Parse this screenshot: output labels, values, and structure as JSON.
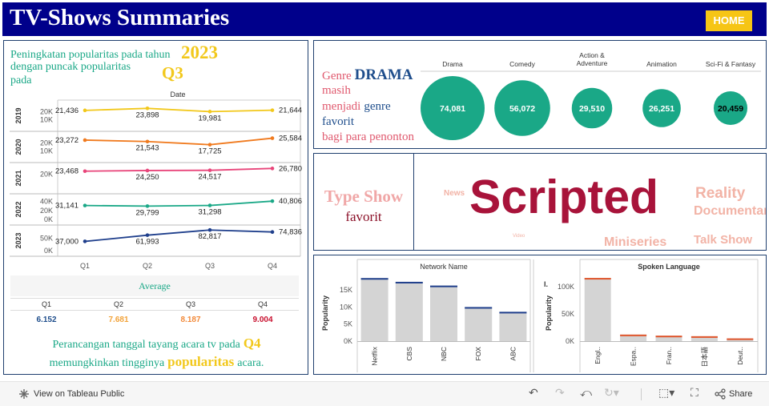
{
  "header": {
    "title": "TV-Shows Summaries",
    "home_label": "HOME"
  },
  "colors": {
    "header_bg": "#00008b",
    "home_bg": "#f6c515",
    "green": "#1aa887",
    "yellow": "#f2c81c",
    "maroon": "#a8133a",
    "pink": "#f0a7a7",
    "navy": "#1f4e8c",
    "bar": "#d4d4d4"
  },
  "trend_panel": {
    "note_line1": "Peningkatan popularitas pada tahun",
    "note_line2": "dengan puncak popularitas",
    "note_line3": "pada",
    "highlight_year": "2023",
    "highlight_quarter": "Q3",
    "footer_line1": "Perancangan tanggal tayang acara tv pada",
    "footer_q": "Q4",
    "footer_line2": "memungkinkan tingginya",
    "footer_highlight": "popularitas",
    "footer_end": "acara."
  },
  "average_table": {
    "title": "Average",
    "headers": [
      "Q1",
      "Q2",
      "Q3",
      "Q4"
    ],
    "values": [
      "6.152",
      "7.681",
      "8.187",
      "9.004"
    ],
    "value_colors": [
      "#1f4e8c",
      "#f2a33a",
      "#f28a3a",
      "#c8102e"
    ]
  },
  "genre_panel": {
    "t1": "Genre",
    "t2": "DRAMA",
    "t3": "masih",
    "t4": "menjadi",
    "t5": "genre",
    "t6": "favorit",
    "t7": "bagi para penonton"
  },
  "type_panel": {
    "title1": "Type Show",
    "title2": "favorit"
  },
  "word_cloud": [
    {
      "word": "Scripted",
      "color": "#a8133a"
    },
    {
      "word": "Reality",
      "color": "#f2b3a6"
    },
    {
      "word": "Documentary",
      "color": "#f2b3a6"
    },
    {
      "word": "Talk Show",
      "color": "#f2b3a6"
    },
    {
      "word": "Miniseries",
      "color": "#f2b3a6"
    },
    {
      "word": "News",
      "color": "#f2b3a6"
    },
    {
      "word": "Video",
      "color": "#f2b3a6"
    }
  ],
  "chart_data": [
    {
      "type": "line",
      "title": "Date",
      "x": [
        "Q1",
        "Q2",
        "Q3",
        "Q4"
      ],
      "series": [
        {
          "name": "2019",
          "values": [
            21436,
            23898,
            19981,
            21644
          ],
          "labels": [
            "21,436",
            "23,898",
            "19,981",
            "21,644"
          ],
          "color": "#f2c81c",
          "yticks": [
            "20K",
            "10K"
          ],
          "ytick_values": [
            20000,
            10000
          ],
          "ylim": [
            0,
            30000
          ]
        },
        {
          "name": "2020",
          "values": [
            23272,
            21543,
            17725,
            25584
          ],
          "labels": [
            "23,272",
            "21,543",
            "17,725",
            "25,584"
          ],
          "color": "#f07a1e",
          "yticks": [
            "20K",
            "10K"
          ],
          "ytick_values": [
            20000,
            10000
          ],
          "ylim": [
            0,
            30000
          ]
        },
        {
          "name": "2021",
          "values": [
            23468,
            24250,
            24517,
            26780
          ],
          "labels": [
            "23,468",
            "24,250",
            "24,517",
            "26,780"
          ],
          "color": "#e8457a",
          "yticks": [
            "20K"
          ],
          "ytick_values": [
            20000
          ],
          "ylim": [
            0,
            30000
          ]
        },
        {
          "name": "2022",
          "values": [
            31141,
            29799,
            31298,
            40806
          ],
          "labels": [
            "31,141",
            "29,799",
            "31,298",
            "40,806"
          ],
          "color": "#1aa887",
          "yticks": [
            "40K",
            "20K",
            "0K"
          ],
          "ytick_values": [
            40000,
            20000,
            0
          ],
          "ylim": [
            -5000,
            50000
          ]
        },
        {
          "name": "2023",
          "values": [
            37000,
            61993,
            82817,
            74836
          ],
          "labels": [
            "37,000",
            "61,993",
            "82,817",
            "74,836"
          ],
          "color": "#1f3f8c",
          "yticks": [
            "50K",
            "0K"
          ],
          "ytick_values": [
            50000,
            0
          ],
          "ylim": [
            -10000,
            90000
          ]
        }
      ]
    },
    {
      "type": "scatter",
      "title": "",
      "categories": [
        "Drama",
        "Comedy",
        "Action & Adventure",
        "Animation",
        "Sci-Fi & Fantasy"
      ],
      "values": [
        74081,
        56072,
        29510,
        26251,
        20459
      ],
      "labels": [
        "74,081",
        "56,072",
        "29,510",
        "26,251",
        "20,459"
      ]
    },
    {
      "type": "bar",
      "title": "Network Name",
      "ylabel": "Popularity",
      "categories": [
        "Netflix",
        "CBS",
        "NBC",
        "FOX",
        "ABC"
      ],
      "values": [
        18500,
        17400,
        16300,
        10000,
        8600
      ],
      "yticks": [
        "15K",
        "10K",
        "5K",
        "0K"
      ],
      "ytick_values": [
        15000,
        10000,
        5000,
        0
      ],
      "ylim": [
        0,
        19500
      ]
    },
    {
      "type": "bar",
      "title": "Spoken Language",
      "ylabel": "Popularity",
      "categories": [
        "Engl..",
        "Espa..",
        "Fran..",
        "日本語",
        "Deut.."
      ],
      "values": [
        116000,
        12000,
        10000,
        9000,
        5000
      ],
      "yticks": [
        "100K",
        "50K",
        "0K"
      ],
      "ytick_values": [
        100000,
        50000,
        0
      ],
      "ylim": [
        0,
        122000
      ]
    }
  ],
  "footer": {
    "tableau_label": "View on Tableau Public",
    "share_label": "Share"
  }
}
